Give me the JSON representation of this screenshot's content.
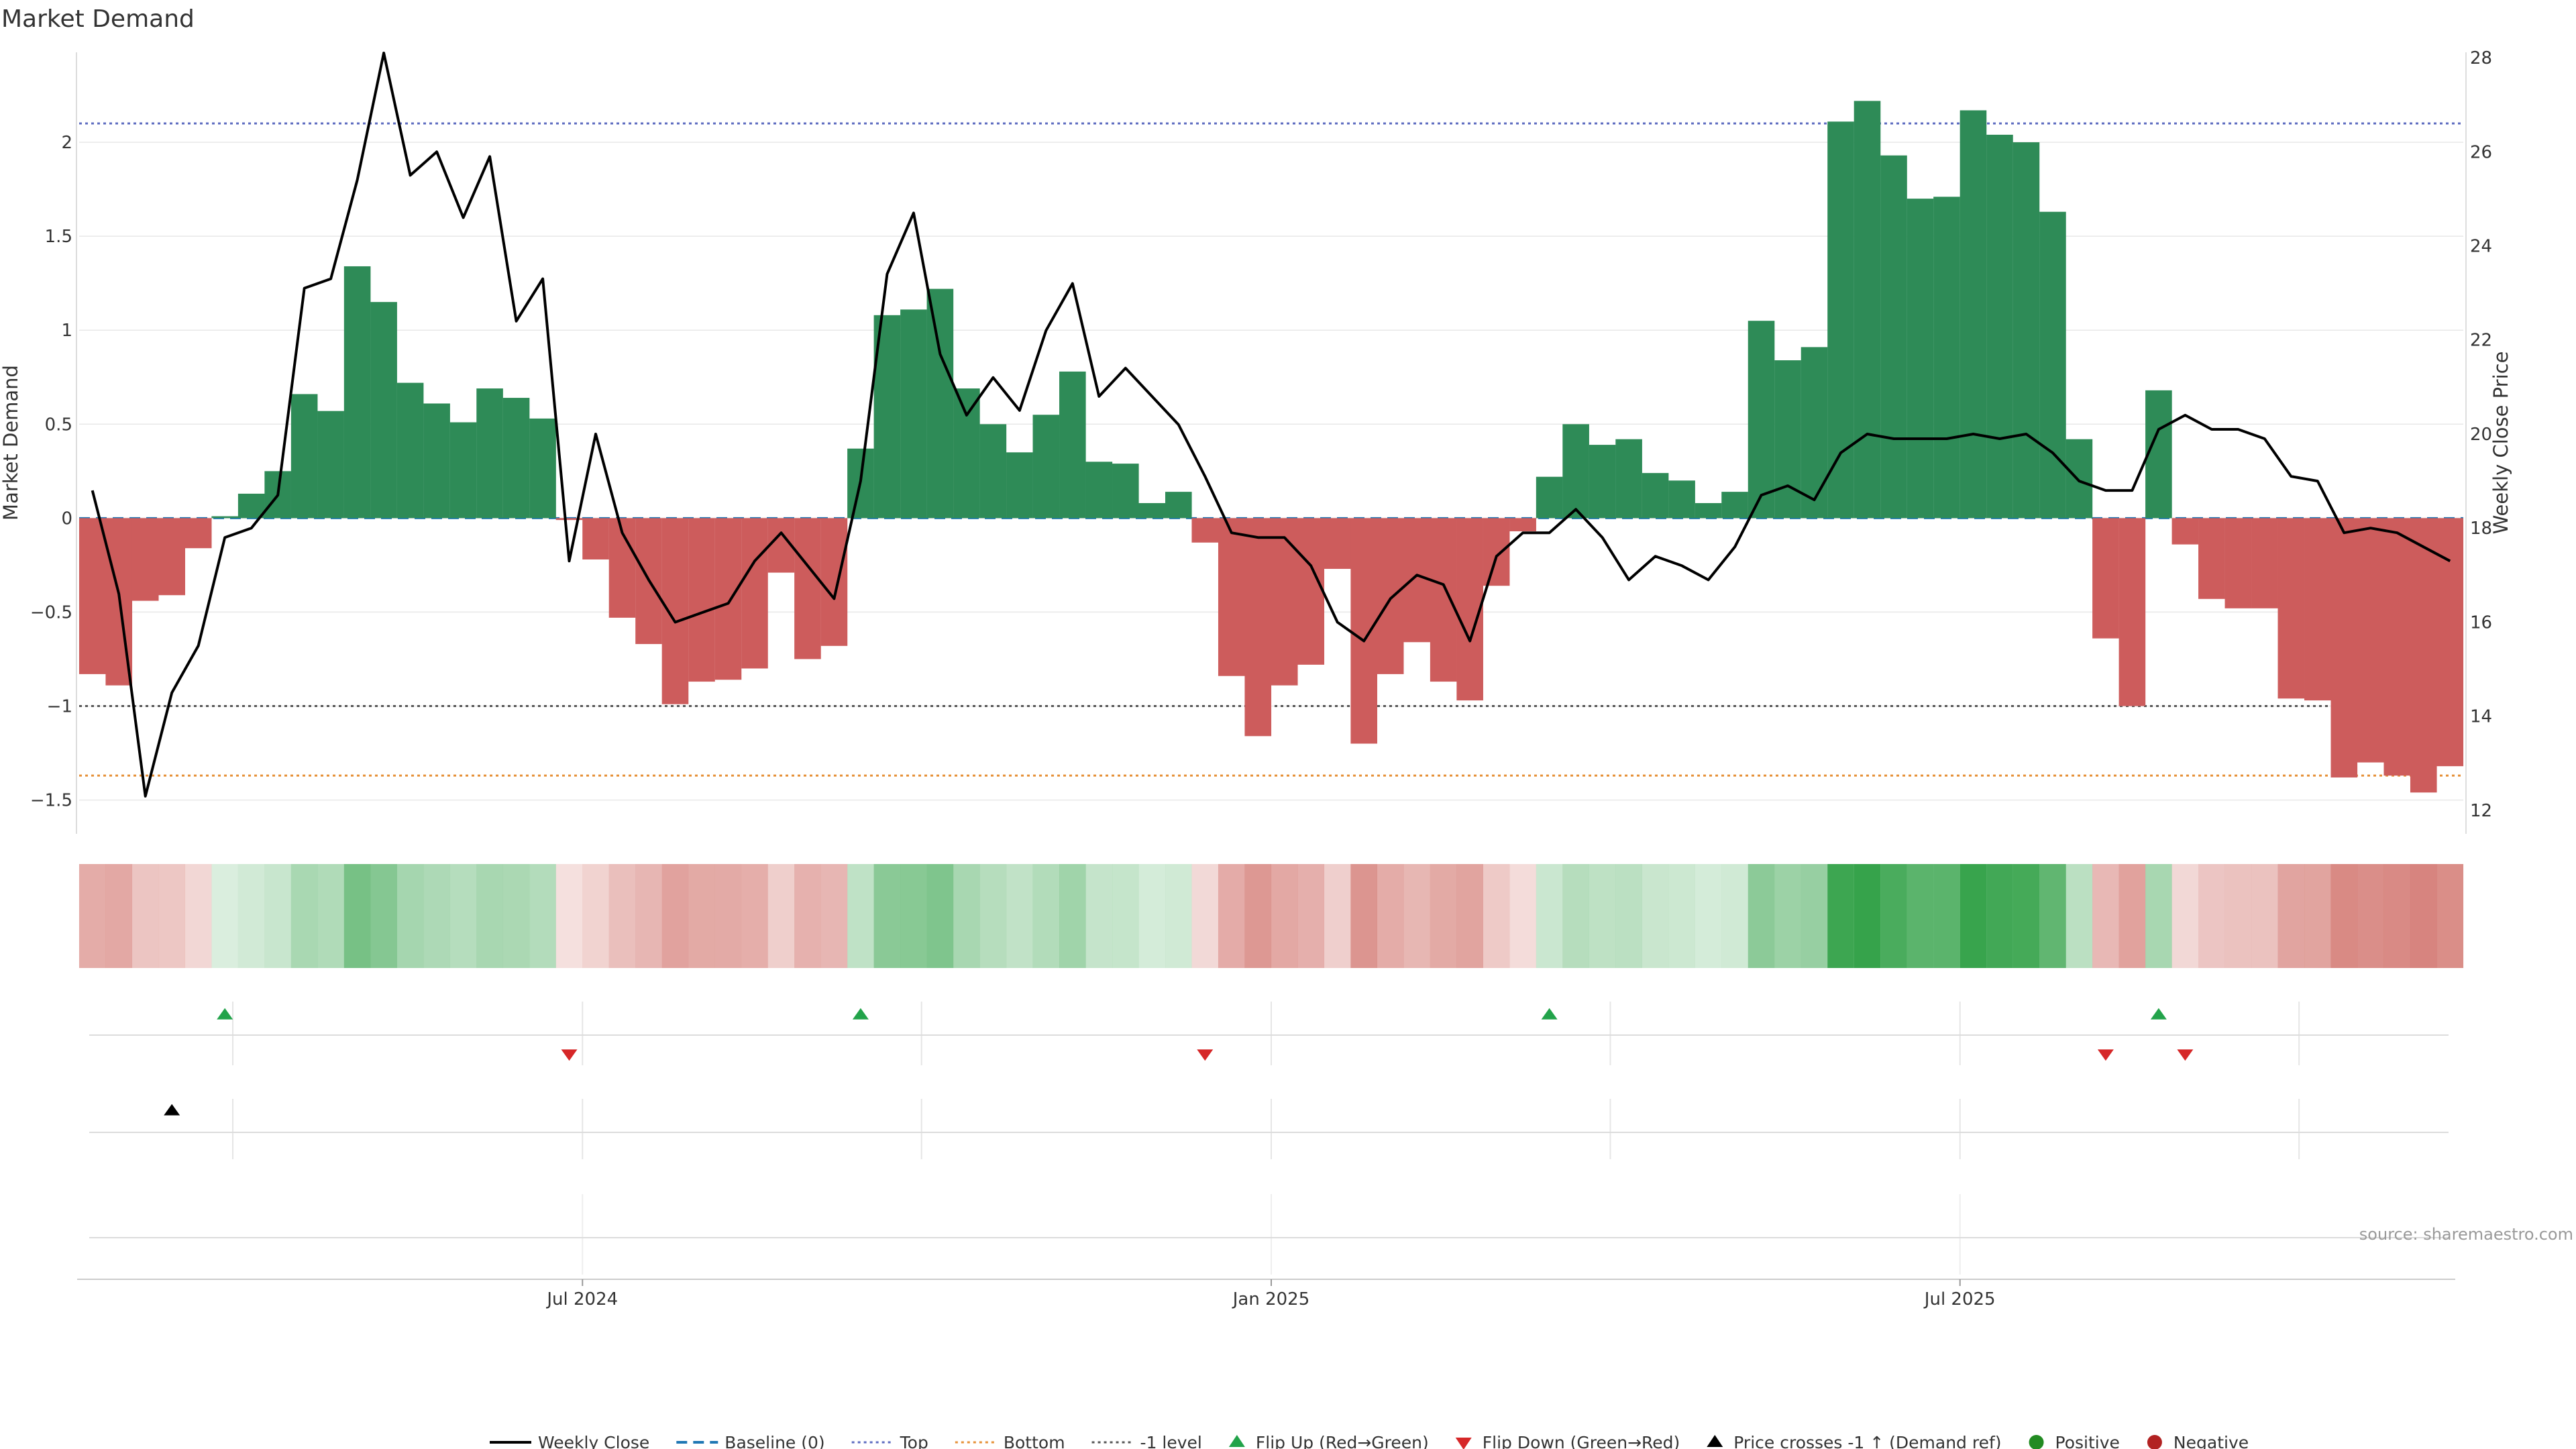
{
  "chart_data": {
    "type": "bar",
    "title": "Market Demand",
    "ylabel": "Market Demand",
    "y2label": "Weekly Close Price",
    "source": "source: sharemaestro.com",
    "ylim": [
      -1.68,
      2.5
    ],
    "y2lim": [
      11.5,
      28.2
    ],
    "yticks": [
      {
        "v": 2,
        "label": "2"
      },
      {
        "v": 1.5,
        "label": "1.5"
      },
      {
        "v": 1,
        "label": "1"
      },
      {
        "v": 0.5,
        "label": "0.5"
      },
      {
        "v": 0,
        "label": "0"
      },
      {
        "v": -0.5,
        "label": "−0.5"
      },
      {
        "v": -1,
        "label": "−1"
      },
      {
        "v": -1.5,
        "label": "−1.5"
      }
    ],
    "y2ticks": [
      {
        "v": 28,
        "label": "28"
      },
      {
        "v": 26,
        "label": "26"
      },
      {
        "v": 24,
        "label": "24"
      },
      {
        "v": 22,
        "label": "22"
      },
      {
        "v": 20,
        "label": "20"
      },
      {
        "v": 18,
        "label": "18"
      },
      {
        "v": 16,
        "label": "16"
      },
      {
        "v": 14,
        "label": "14"
      },
      {
        "v": 12,
        "label": "12"
      }
    ],
    "xticks": [
      {
        "week": 18.5,
        "label": "Jul 2024"
      },
      {
        "week": 44.5,
        "label": "Jan 2025"
      },
      {
        "week": 70.5,
        "label": "Jul 2025"
      }
    ],
    "minor_grid_weeks": [
      5.3,
      31.3,
      57.3,
      83.3
    ],
    "reference_lines": {
      "top": 2.1,
      "bottom": -1.37,
      "minus_one": -1
    },
    "demand": [
      -0.83,
      -0.89,
      -0.44,
      -0.41,
      -0.16,
      0.01,
      0.13,
      0.25,
      0.66,
      0.57,
      1.34,
      1.15,
      0.72,
      0.61,
      0.51,
      0.69,
      0.64,
      0.53,
      -0.01,
      -0.22,
      -0.53,
      -0.67,
      -0.99,
      -0.87,
      -0.86,
      -0.8,
      -0.29,
      -0.75,
      -0.68,
      0.37,
      1.08,
      1.11,
      1.22,
      0.69,
      0.5,
      0.35,
      0.55,
      0.78,
      0.3,
      0.29,
      0.08,
      0.14,
      -0.13,
      -0.84,
      -1.16,
      -0.89,
      -0.78,
      -0.27,
      -1.2,
      -0.83,
      -0.66,
      -0.87,
      -0.97,
      -0.36,
      -0.07,
      0.22,
      0.5,
      0.39,
      0.42,
      0.24,
      0.2,
      0.08,
      0.14,
      1.05,
      0.84,
      0.91,
      2.11,
      2.22,
      1.93,
      1.7,
      1.71,
      2.17,
      2.04,
      2.0,
      1.63,
      0.42,
      -0.64,
      -1.0,
      0.68,
      -0.14,
      -0.43,
      -0.48,
      -0.48,
      -0.96,
      -0.97,
      -1.38,
      -1.3,
      -1.37,
      -1.46,
      -1.32
    ],
    "weekly_close": [
      18.8,
      16.6,
      12.3,
      14.5,
      15.5,
      17.8,
      18.0,
      18.7,
      23.1,
      23.3,
      25.4,
      28.1,
      25.5,
      26.0,
      24.6,
      25.9,
      22.4,
      23.3,
      17.3,
      20.0,
      17.9,
      16.9,
      16.0,
      16.2,
      16.4,
      17.3,
      17.9,
      17.2,
      16.5,
      19.0,
      23.4,
      24.7,
      21.7,
      20.4,
      21.2,
      20.5,
      22.2,
      23.2,
      20.8,
      21.4,
      20.8,
      20.2,
      19.1,
      17.9,
      17.8,
      17.8,
      17.2,
      16.0,
      15.6,
      16.5,
      17.0,
      16.8,
      15.6,
      17.4,
      17.9,
      17.9,
      18.4,
      17.8,
      16.9,
      17.4,
      17.2,
      16.9,
      17.6,
      18.7,
      18.9,
      18.6,
      19.6,
      20.0,
      19.9,
      19.9,
      19.9,
      20.0,
      19.9,
      20.0,
      19.6,
      19.0,
      18.8,
      18.8,
      20.1,
      20.4,
      20.1,
      20.1,
      19.9,
      19.1,
      19.0,
      17.9,
      18.0,
      17.9,
      17.6,
      17.3
    ],
    "flip_up_weeks": [
      5,
      29,
      55,
      78
    ],
    "flip_down_weeks": [
      18,
      42,
      76,
      79
    ],
    "price_cross_weeks": [
      3
    ],
    "colors": {
      "positive": "#2e8b57",
      "negative": "#cd5c5c",
      "heat_positive": "#36a34b",
      "heat_negative": "#c8564e",
      "line": "#000000",
      "baseline": "#1f77b4",
      "top": "#5c6bc0",
      "bottom": "#e69138",
      "minus_one": "#555555",
      "flip_up": "#22a34a",
      "flip_down": "#d62728",
      "cross": "#000000",
      "dot_positive": "#228b22",
      "dot_negative": "#b22222"
    },
    "legend": [
      {
        "label": "Weekly Close",
        "kind": "line",
        "color": "#000000"
      },
      {
        "label": "Baseline (0)",
        "kind": "dash",
        "color": "#1f77b4"
      },
      {
        "label": "Top",
        "kind": "dot",
        "color": "#5c6bc0"
      },
      {
        "label": "Bottom",
        "kind": "dot",
        "color": "#e69138"
      },
      {
        "label": "-1 level",
        "kind": "dot",
        "color": "#555555"
      },
      {
        "label": "Flip Up (Red→Green)",
        "kind": "tri-up",
        "color": "#22a34a"
      },
      {
        "label": "Flip Down (Green→Red)",
        "kind": "tri-down",
        "color": "#d62728"
      },
      {
        "label": "Price crosses -1 ↑ (Demand ref)",
        "kind": "tri-up",
        "color": "#000000"
      },
      {
        "label": "Positive",
        "kind": "circle",
        "color": "#228b22"
      },
      {
        "label": "Negative",
        "kind": "circle",
        "color": "#b22222"
      }
    ]
  }
}
